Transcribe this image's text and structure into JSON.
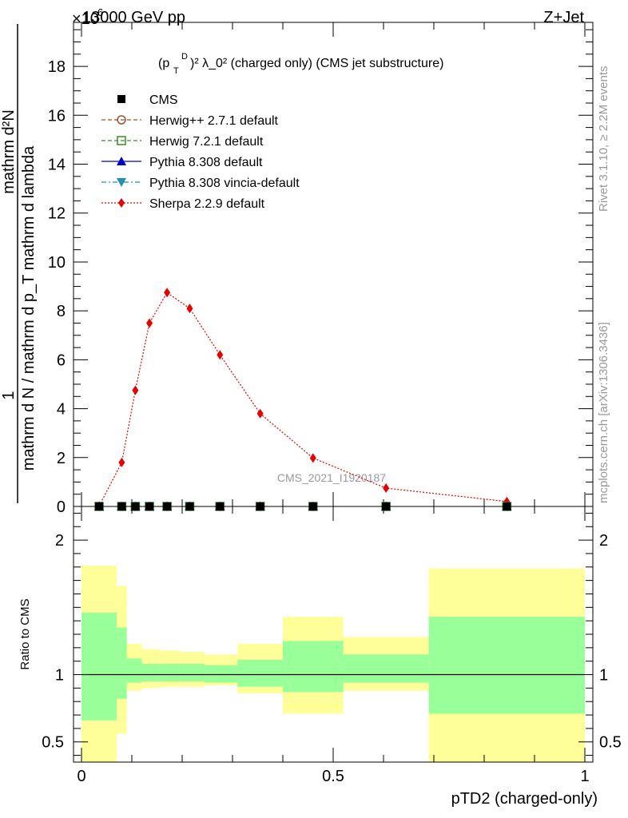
{
  "header": {
    "left": "13000 GeV pp",
    "right": "Z+Jet",
    "exponent": "×10",
    "exponent_power": "6"
  },
  "side": {
    "rivet": "Rivet 3.1.10, ≥ 2.2M events",
    "mcplots": "mcplots.cern.ch [arXiv:1306.3436]"
  },
  "watermark": "CMS_2021_I1920187",
  "upper_ylabel": "mathrm d N / mathrm d p_T mathrm d lambda",
  "ratio_ylabel": "Ratio to CMS",
  "xlabel": "pTD2 (charged-only)",
  "title_parts": {
    "p": "(p",
    "sup_d": "D",
    "sub_t": "T",
    "rest": ")² λ_0² (charged only) (CMS jet substructure)"
  },
  "ylabel_num": "mathrm d²N",
  "ylabel_den_full": "mathrm d N / mathrm d p_T mathrm d lambda",
  "colors": {
    "cms": "#000000",
    "herwigpp": "#a0522d",
    "herwig7": "#3c8c28",
    "pythia": "#0000c8",
    "vincia": "#1e90b4",
    "sherpa": "#e60000",
    "band_outer": "#ffff99",
    "band_inner": "#99ff99"
  },
  "chart_data": [
    {
      "type": "line",
      "title": "(p_T^D)² λ_0² (charged only) (CMS jet substructure)",
      "xlabel": "pTD2 (charged-only)",
      "ylabel": "1/(mathrm d N / mathrm d p_T mathrm d lambda) mathrm d²N / (mathrm d p_T mathrm d lambda)",
      "xlim": [
        0,
        1
      ],
      "ylim": [
        0,
        19.8
      ],
      "y_scale_label": "×10⁶",
      "y_ticks": [
        0,
        2,
        4,
        6,
        8,
        10,
        12,
        14,
        16,
        18
      ],
      "legend_position": "top-left",
      "grid": false,
      "x": [
        0.035,
        0.08,
        0.107,
        0.135,
        0.17,
        0.215,
        0.275,
        0.355,
        0.46,
        0.605,
        0.845
      ],
      "series": [
        {
          "name": "CMS",
          "key": "cms",
          "marker": "square",
          "values": [
            0,
            0,
            0,
            0,
            0,
            0,
            0,
            0,
            0,
            0,
            0
          ]
        },
        {
          "name": "Herwig++ 2.7.1 default",
          "key": "herwigpp",
          "marker": "circle-open",
          "values": [
            0,
            0,
            0,
            0,
            0,
            0,
            0,
            0,
            0,
            0,
            0
          ]
        },
        {
          "name": "Herwig 7.2.1 default",
          "key": "herwig7",
          "marker": "square-open",
          "values": [
            0,
            0,
            0,
            0,
            0,
            0,
            0,
            0,
            0,
            0,
            0
          ]
        },
        {
          "name": "Pythia 8.308 default",
          "key": "pythia",
          "marker": "triangle-up",
          "values": [
            0,
            0,
            0,
            0,
            0,
            0,
            0,
            0,
            0,
            0,
            0
          ]
        },
        {
          "name": "Pythia 8.308 vincia-default",
          "key": "vincia",
          "marker": "triangle-down",
          "values": [
            0,
            0,
            0,
            0,
            0,
            0,
            0,
            0,
            0,
            0,
            0
          ]
        },
        {
          "name": "Sherpa 2.2.9 default",
          "key": "sherpa",
          "marker": "diamond",
          "values": [
            0.02,
            1.8,
            4.75,
            7.5,
            8.75,
            8.1,
            6.2,
            3.8,
            1.98,
            0.75,
            0.2
          ]
        }
      ]
    },
    {
      "type": "area",
      "ylabel": "Ratio to CMS",
      "xlabel": "pTD2 (charged-only)",
      "xlim": [
        0,
        1
      ],
      "ylim": [
        0.35,
        2.25
      ],
      "x_ticks": [
        0,
        0.5,
        1
      ],
      "x_tick_labels": [
        "0",
        "0.5",
        "1"
      ],
      "y_ticks": [
        0.5,
        1,
        2
      ],
      "y_tick_labels": [
        "0.5",
        "1",
        "2"
      ],
      "reference_line": 1,
      "bins": [
        {
          "x0": 0.0,
          "x1": 0.07,
          "inner": [
            0.66,
            1.46
          ],
          "outer": [
            0.35,
            1.81
          ]
        },
        {
          "x0": 0.07,
          "x1": 0.09,
          "inner": [
            0.82,
            1.35
          ],
          "outer": [
            0.56,
            1.66
          ]
        },
        {
          "x0": 0.09,
          "x1": 0.12,
          "inner": [
            0.94,
            1.12
          ],
          "outer": [
            0.88,
            1.23
          ]
        },
        {
          "x0": 0.12,
          "x1": 0.155,
          "inner": [
            0.95,
            1.08
          ],
          "outer": [
            0.9,
            1.19
          ]
        },
        {
          "x0": 0.155,
          "x1": 0.195,
          "inner": [
            0.95,
            1.08
          ],
          "outer": [
            0.91,
            1.18
          ]
        },
        {
          "x0": 0.195,
          "x1": 0.245,
          "inner": [
            0.95,
            1.08
          ],
          "outer": [
            0.91,
            1.17
          ]
        },
        {
          "x0": 0.245,
          "x1": 0.31,
          "inner": [
            0.94,
            1.07
          ],
          "outer": [
            0.92,
            1.15
          ]
        },
        {
          "x0": 0.31,
          "x1": 0.4,
          "inner": [
            0.91,
            1.11
          ],
          "outer": [
            0.86,
            1.23
          ]
        },
        {
          "x0": 0.4,
          "x1": 0.52,
          "inner": [
            0.87,
            1.25
          ],
          "outer": [
            0.71,
            1.43
          ]
        },
        {
          "x0": 0.52,
          "x1": 0.69,
          "inner": [
            0.94,
            1.15
          ],
          "outer": [
            0.88,
            1.28
          ]
        },
        {
          "x0": 0.69,
          "x1": 1.0,
          "inner": [
            0.71,
            1.43
          ],
          "outer": [
            0.35,
            1.79
          ]
        }
      ]
    }
  ]
}
